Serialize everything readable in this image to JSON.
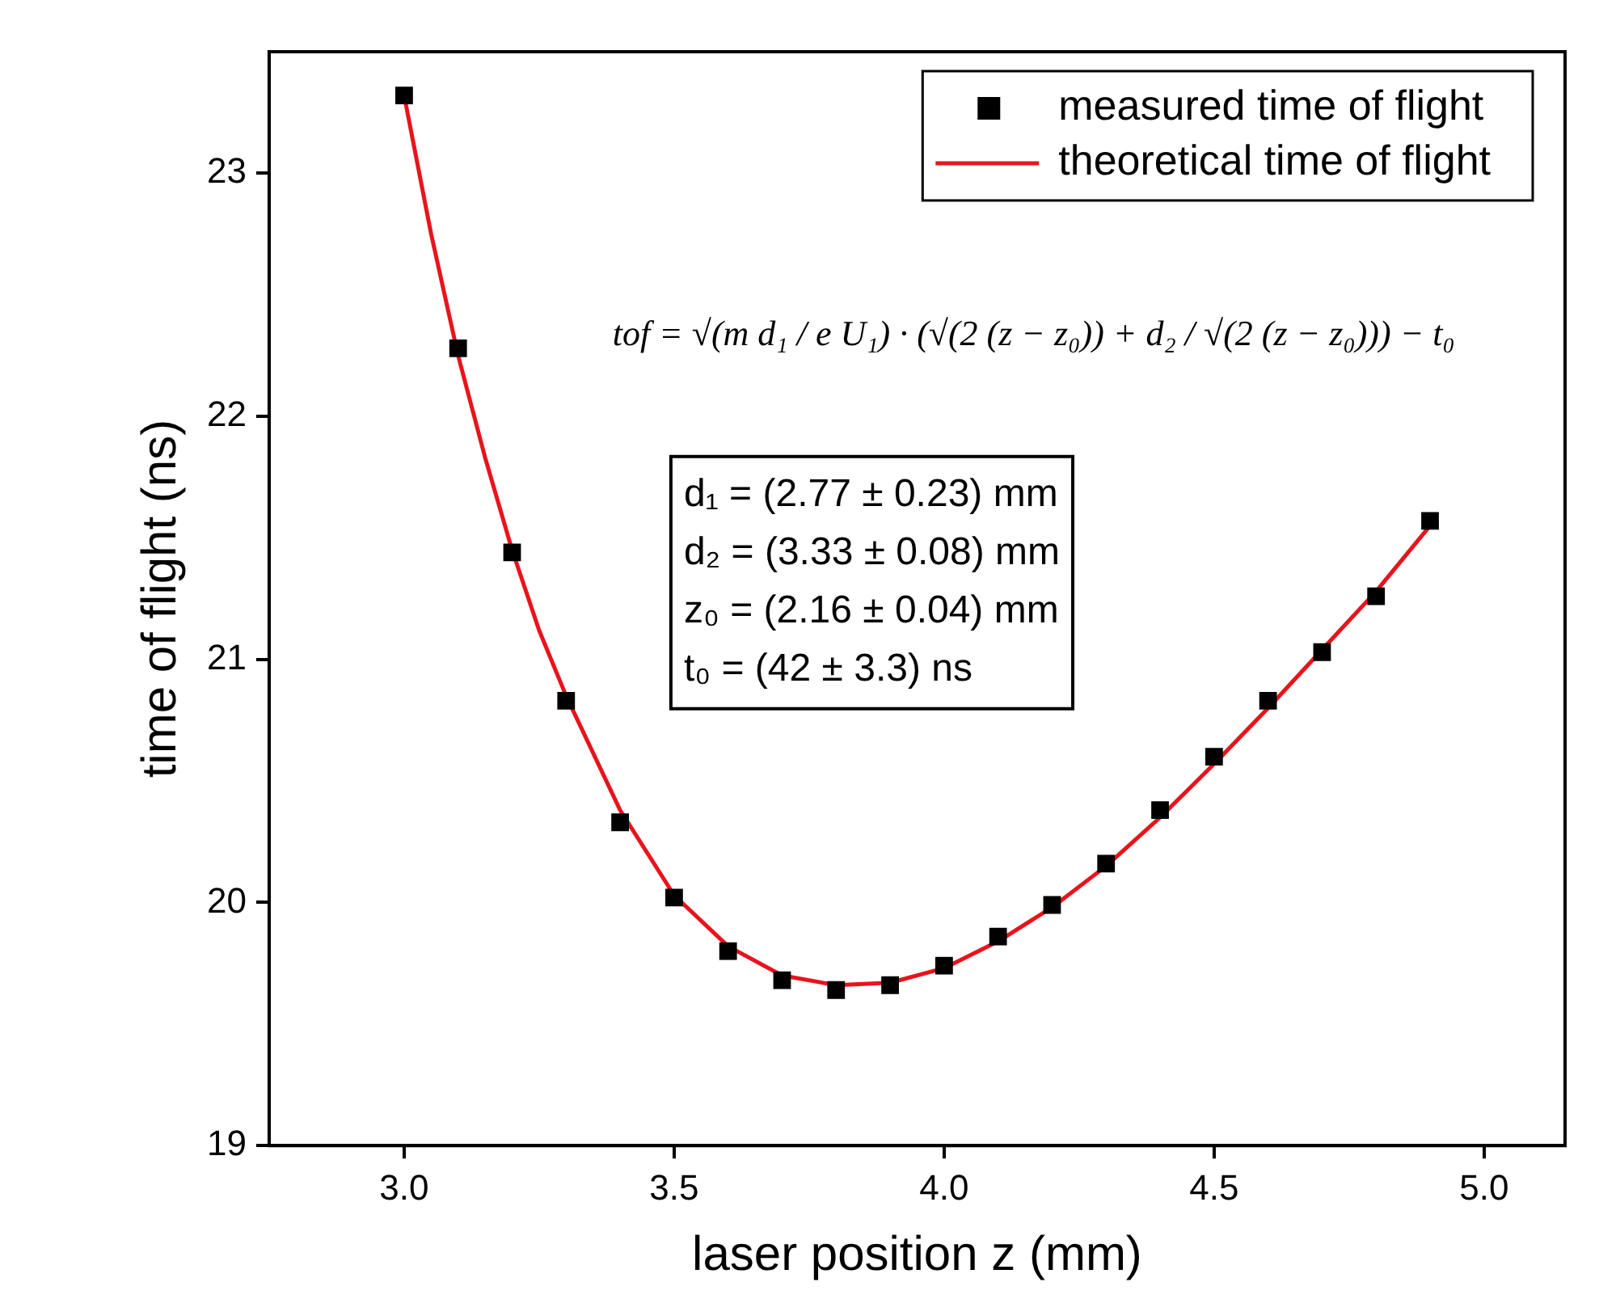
{
  "chart_data": {
    "type": "scatter",
    "xlabel": "laser position z (mm)",
    "ylabel": "time of flight (ns)",
    "xlim": [
      2.75,
      5.15
    ],
    "xticks": [
      {
        "value": 3,
        "label": "3.0"
      },
      {
        "value": 3.5,
        "label": "3.5"
      },
      {
        "value": 4,
        "label": "4.0"
      },
      {
        "value": 4.5,
        "label": "4.5"
      },
      {
        "value": 5,
        "label": "5.0"
      }
    ],
    "ylim": [
      19,
      23.5
    ],
    "yticks": [
      19,
      20,
      21,
      22,
      23
    ],
    "grid": false,
    "legend": "top right",
    "annotations": [
      "tof = √(m d₁ / e U₁) · (√(2 (z − z₀)) + d₂ / √(2 (z − z₀))) − t₀",
      "d₁ = (2.77 ± 0.23) mm",
      "d₂ = (3.33 ± 0.08) mm",
      "z₀ = (2.16 ± 0.04) mm",
      "t₀ = (42 ± 3.3) ns"
    ],
    "series": [
      {
        "name": "measured time of flight",
        "type": "scatter",
        "marker": "square",
        "color": "#000000",
        "x": [
          3.0,
          3.1,
          3.2,
          3.3,
          3.4,
          3.5,
          3.6,
          3.7,
          3.8,
          3.9,
          4.0,
          4.1,
          4.2,
          4.3,
          4.4,
          4.5,
          4.6,
          4.7,
          4.8,
          4.9
        ],
        "values": [
          23.32,
          22.28,
          21.44,
          20.83,
          20.33,
          20.02,
          19.8,
          19.68,
          19.64,
          19.66,
          19.74,
          19.86,
          19.99,
          20.16,
          20.38,
          20.6,
          20.83,
          21.03,
          21.26,
          21.57
        ]
      },
      {
        "name": "theoretical time of flight",
        "type": "line",
        "marker": "none",
        "line_style": "solid",
        "color": "#e8141c",
        "x": [
          3.0,
          3.05,
          3.1,
          3.15,
          3.2,
          3.25,
          3.3,
          3.4,
          3.5,
          3.6,
          3.7,
          3.8,
          3.9,
          4.0,
          4.1,
          4.2,
          4.3,
          4.4,
          4.5,
          4.6,
          4.7,
          4.8,
          4.9
        ],
        "values": [
          23.32,
          22.75,
          22.25,
          21.83,
          21.45,
          21.12,
          20.85,
          20.38,
          20.03,
          19.82,
          19.7,
          19.66,
          19.67,
          19.73,
          19.84,
          19.98,
          20.15,
          20.35,
          20.57,
          20.8,
          21.04,
          21.28,
          21.55
        ]
      }
    ]
  }
}
